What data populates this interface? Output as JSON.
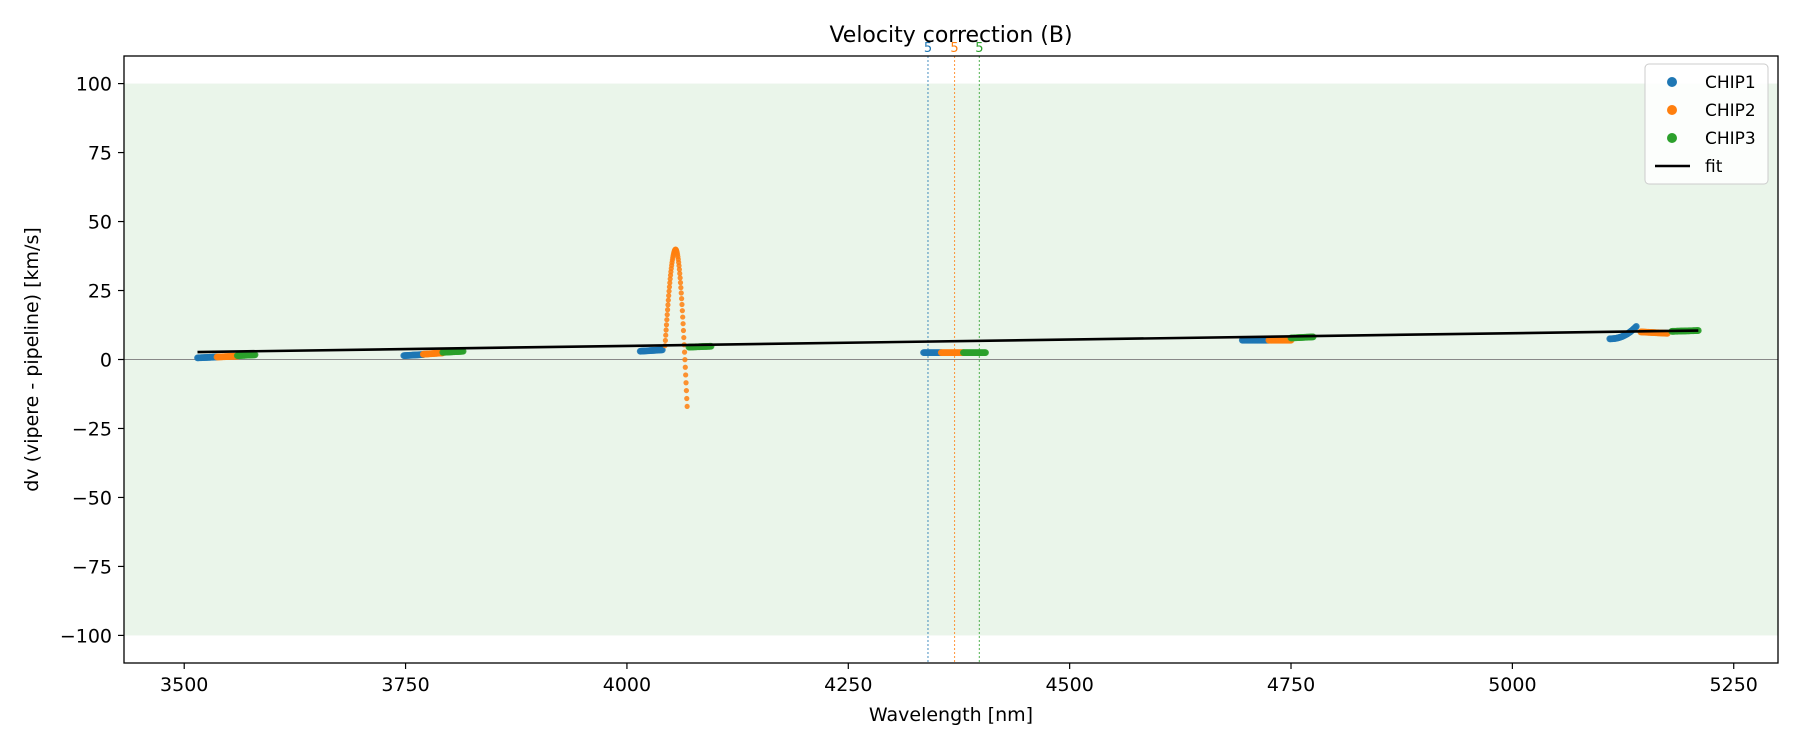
{
  "chart_data": {
    "type": "scatter",
    "title": "Velocity correction (B)",
    "xlabel": "Wavelength [nm]",
    "ylabel": "dv (vipere - pipeline) [km/s]",
    "xlim": [
      3432,
      5300
    ],
    "ylim": [
      -110,
      110
    ],
    "xticks": [
      3500,
      3750,
      4000,
      4250,
      4500,
      4750,
      5000,
      5250
    ],
    "yticks": [
      -100,
      -75,
      -50,
      -25,
      0,
      25,
      50,
      75,
      100
    ],
    "ytick_labels": [
      "−100",
      "−75",
      "−50",
      "−25",
      "0",
      "25",
      "50",
      "75",
      "100"
    ],
    "shaded_band": [
      -100,
      100
    ],
    "shaded_color": "#eaf5ea",
    "zero_line": 0,
    "legend_position": "top-right",
    "series": [
      {
        "name": "CHIP1",
        "color": "#1f77b4",
        "segments": [
          {
            "x_start": 3515,
            "x_end": 3537,
            "y_start": 0.6,
            "y_end": 0.9
          },
          {
            "x_start": 3748,
            "x_end": 3770,
            "y_start": 1.4,
            "y_end": 1.8
          },
          {
            "x_start": 4015,
            "x_end": 4040,
            "y_start": 3.0,
            "y_end": 3.5
          },
          {
            "x_start": 4335,
            "x_end": 4355,
            "y_start": 2.5,
            "y_end": 2.5
          },
          {
            "x_start": 4695,
            "x_end": 4725,
            "y_start": 7.0,
            "y_end": 7.0
          },
          {
            "x_start": 5110,
            "x_end": 5140,
            "y_start": 7.5,
            "y_end": 12.0,
            "curve": true
          }
        ]
      },
      {
        "name": "CHIP2",
        "color": "#ff7f0e",
        "segments": [
          {
            "x_start": 3537,
            "x_end": 3560,
            "y_start": 0.9,
            "y_end": 1.2
          },
          {
            "x_start": 3770,
            "x_end": 3792,
            "y_start": 1.9,
            "y_end": 2.4
          },
          {
            "x_start": 4355,
            "x_end": 4380,
            "y_start": 2.5,
            "y_end": 2.5
          },
          {
            "x_start": 4725,
            "x_end": 4750,
            "y_start": 7.0,
            "y_end": 7.0
          },
          {
            "x_start": 5145,
            "x_end": 5175,
            "y_start": 10.0,
            "y_end": 9.5
          }
        ],
        "peak": {
          "x_start": 4043,
          "x_peak": 4055,
          "x_end": 4068,
          "y_start": 5,
          "y_peak": 40,
          "y_end": -17
        }
      },
      {
        "name": "CHIP3",
        "color": "#2ca02c",
        "segments": [
          {
            "x_start": 3560,
            "x_end": 3580,
            "y_start": 1.4,
            "y_end": 1.7
          },
          {
            "x_start": 3792,
            "x_end": 3815,
            "y_start": 2.6,
            "y_end": 3.0
          },
          {
            "x_start": 4070,
            "x_end": 4095,
            "y_start": 4.5,
            "y_end": 4.8
          },
          {
            "x_start": 4380,
            "x_end": 4405,
            "y_start": 2.5,
            "y_end": 2.5
          },
          {
            "x_start": 4750,
            "x_end": 4775,
            "y_start": 7.8,
            "y_end": 8.2
          },
          {
            "x_start": 5180,
            "x_end": 5210,
            "y_start": 10.2,
            "y_end": 10.5
          }
        ]
      },
      {
        "name": "fit",
        "color": "#000000",
        "type": "line",
        "x": [
          3515,
          5210
        ],
        "y": [
          2.7,
          10.5
        ]
      }
    ],
    "vertical_lines": [
      {
        "x": 4340,
        "color": "#1f77b4",
        "label": "5"
      },
      {
        "x": 4370,
        "color": "#ff7f0e",
        "label": "5"
      },
      {
        "x": 4398,
        "color": "#2ca02c",
        "label": "5"
      }
    ]
  }
}
